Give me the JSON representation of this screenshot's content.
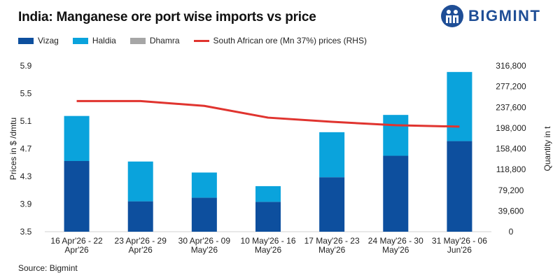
{
  "header": {
    "title": "India: Manganese ore port wise imports vs price",
    "brand": "BIGMINT"
  },
  "source": "Source: Bigmint",
  "colors": {
    "vizag": "#0d4f9e",
    "haldia": "#0aa3dc",
    "dhamra": "#a6a6a6",
    "price_line": "#e0342f",
    "brand": "#1f4e96"
  },
  "chart_data": {
    "type": "bar",
    "stacked": true,
    "categories": [
      [
        "16 Apr'26 - 22",
        "Apr'26"
      ],
      [
        "23 Apr'26 - 29",
        "Apr'26"
      ],
      [
        "30 Apr'26 - 09",
        "May'26"
      ],
      [
        "10 May'26 - 16",
        "May'26"
      ],
      [
        "17 May'26 - 23",
        "May'26"
      ],
      [
        "24 May'26 - 30",
        "May'26"
      ],
      [
        "31 May'26 - 06",
        "Jun'26"
      ]
    ],
    "series": [
      {
        "name": "Vizag",
        "axis": "right",
        "values": [
          135000,
          58000,
          65000,
          57000,
          104000,
          145000,
          173000
        ]
      },
      {
        "name": "Haldia",
        "axis": "right",
        "values": [
          86000,
          76000,
          48000,
          30000,
          86000,
          78000,
          132000
        ]
      },
      {
        "name": "Dhamra",
        "axis": "right",
        "values": [
          0,
          0,
          0,
          0,
          0,
          0,
          0
        ]
      },
      {
        "name": "South African ore (Mn 37%) prices (RHS)",
        "type": "line",
        "axis": "left",
        "values": [
          5.39,
          5.39,
          5.32,
          5.15,
          5.09,
          5.04,
          5.02
        ]
      }
    ],
    "ylabel_left": "Prices in $ /dmtu",
    "ylabel_right": "Quantity in t",
    "ylim_left": [
      3.5,
      5.9
    ],
    "yticks_left": [
      "3.5",
      "3.9",
      "4.3",
      "4.7",
      "5.1",
      "5.5",
      "5.9"
    ],
    "ylim_right": [
      0,
      316800
    ],
    "yticks_right": [
      "0",
      "39,600",
      "79,200",
      "118,800",
      "158,400",
      "198,000",
      "237,600",
      "277,200",
      "316,800"
    ],
    "legend_position": "top-left",
    "grid": false
  }
}
